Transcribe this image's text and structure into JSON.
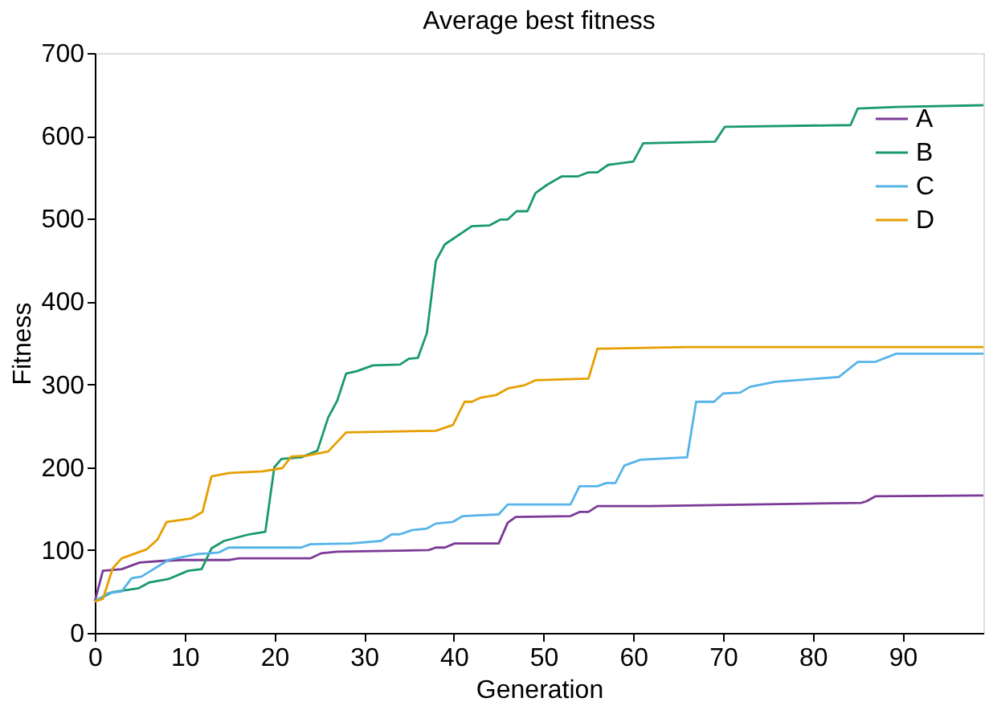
{
  "chart_data": {
    "type": "line",
    "title": "Average best fitness",
    "xlabel": "Generation",
    "ylabel": "Fitness",
    "xlim": [
      0,
      99
    ],
    "xticks": [
      0,
      10,
      20,
      30,
      40,
      50,
      60,
      70,
      80,
      90
    ],
    "ylim": [
      0,
      700
    ],
    "yticks": [
      0,
      100,
      200,
      300,
      400,
      500,
      600,
      700
    ],
    "grid": false,
    "legend": "top right",
    "marker": "none",
    "line_style": "solid",
    "series": [
      {
        "name": "A",
        "color": "#7b3a96",
        "x": [
          0,
          0.9,
          3,
          5,
          7.6,
          9.8,
          15,
          16.1,
          24,
          25.2,
          27,
          37.2,
          38,
          39,
          40.1,
          45,
          46,
          46.9,
          53,
          54,
          55,
          56,
          61.8,
          85.4,
          86,
          87,
          99
        ],
        "values": [
          38,
          75,
          77,
          85,
          87,
          88,
          88,
          90,
          90,
          96,
          98,
          100,
          103,
          103,
          108,
          108,
          133,
          140,
          141,
          146,
          146,
          153,
          153,
          157,
          159,
          165,
          166
        ]
      },
      {
        "name": "B",
        "color": "#1a9a6c",
        "x": [
          0,
          1.9,
          4.9,
          6.1,
          8.2,
          10.4,
          11.9,
          13,
          14.4,
          17.2,
          19,
          20,
          20.8,
          23,
          24.8,
          26,
          27,
          28,
          29.2,
          31,
          34,
          35,
          36,
          37,
          38,
          39,
          42,
          44,
          45.2,
          46,
          47,
          48.2,
          49.1,
          50.4,
          52,
          53.8,
          55,
          56,
          57.2,
          60,
          61.1,
          69.1,
          70.2,
          84.2,
          85,
          89.4,
          99
        ],
        "values": [
          38,
          49,
          54,
          61,
          65,
          75,
          77,
          102,
          111,
          119,
          122,
          200,
          210,
          212,
          220,
          260,
          280,
          313,
          316,
          323,
          324,
          331,
          332,
          362,
          449,
          469,
          491,
          492,
          499,
          499,
          509,
          509,
          531,
          541,
          551,
          551,
          556,
          556,
          565,
          569,
          591,
          593,
          611,
          613,
          633,
          635,
          637
        ]
      },
      {
        "name": "C",
        "color": "#56b4e9",
        "x": [
          0,
          1.5,
          3,
          4.1,
          5.2,
          8.2,
          11.3,
          13.8,
          14.9,
          23,
          24,
          28.5,
          31.9,
          33.1,
          34,
          35.3,
          37,
          38,
          39.9,
          41,
          42.7,
          45,
          46,
          53,
          54,
          56,
          57,
          58,
          59,
          60.8,
          66,
          67,
          69,
          70,
          71.9,
          73,
          75.8,
          82.9,
          85,
          86.9,
          89.3,
          99
        ],
        "values": [
          38,
          48,
          50,
          66,
          68,
          88,
          95,
          97,
          103,
          103,
          107,
          108,
          111,
          119,
          119,
          124,
          126,
          132,
          134,
          141,
          142,
          143,
          155,
          155,
          177,
          177,
          181,
          181,
          202,
          209,
          212,
          279,
          279,
          289,
          290,
          297,
          303,
          309,
          327,
          327,
          337,
          337
        ]
      },
      {
        "name": "D",
        "color": "#e69f00",
        "x": [
          0,
          0.9,
          2,
          3,
          5.8,
          7,
          8,
          10.7,
          12,
          13,
          15,
          18.7,
          20.9,
          21.9,
          23.6,
          26,
          28,
          38,
          39.9,
          41.2,
          42,
          43,
          44.7,
          46,
          47.9,
          49.1,
          55,
          56,
          66,
          99
        ],
        "values": [
          38,
          41,
          78,
          90,
          101,
          113,
          134,
          138,
          146,
          189,
          193,
          195,
          199,
          213,
          214,
          219,
          242,
          244,
          251,
          279,
          279,
          284,
          287,
          295,
          299,
          305,
          307,
          343,
          345,
          345
        ]
      }
    ]
  }
}
